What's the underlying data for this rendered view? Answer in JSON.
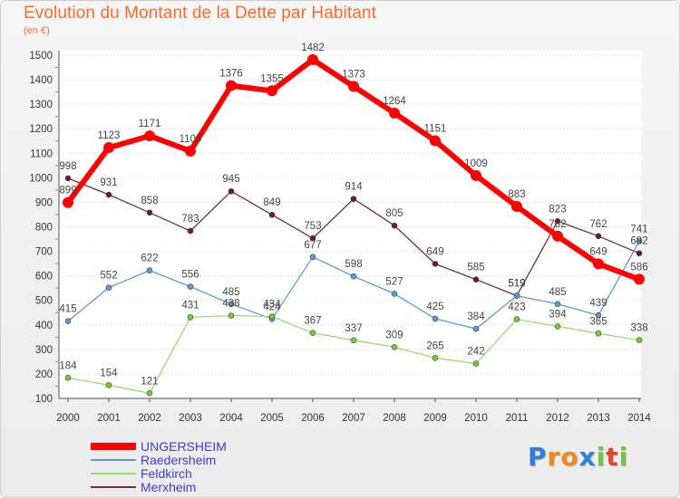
{
  "title": "Evolution du Montant de la Dette par Habitant",
  "subtitle": "(en €)",
  "logo": {
    "text": [
      "P",
      "r",
      "o",
      "x",
      "i",
      "t",
      "i"
    ],
    "colors": [
      "#2f7fd8",
      "#f08a1c",
      "#f08a1c",
      "#2f7fd8",
      "#7cc242",
      "#e8452c",
      "#7cc242"
    ]
  },
  "chart_data": {
    "type": "line",
    "title": "Evolution du Montant de la Dette par Habitant",
    "ylabel": "(en €)",
    "xlabel": "",
    "x": [
      "2000",
      "2001",
      "2002",
      "2003",
      "2004",
      "2005",
      "2006",
      "2007",
      "2008",
      "2009",
      "2010",
      "2011",
      "2012",
      "2013",
      "2014"
    ],
    "ylim": [
      100,
      1500
    ],
    "yticks": [
      100,
      200,
      300,
      400,
      500,
      600,
      700,
      800,
      900,
      1000,
      1100,
      1200,
      1300,
      1400,
      1500
    ],
    "grid": "horizontal-dotted",
    "legend_position": "bottom-left",
    "series": [
      {
        "name": "UNGERSHEIM",
        "color": "#ff0000",
        "values": [
          899,
          1123,
          1171,
          1109,
          1376,
          1355,
          1482,
          1373,
          1264,
          1151,
          1009,
          883,
          762,
          649,
          586
        ]
      },
      {
        "name": "Raedersheim",
        "color": "#5b9bd5",
        "values": [
          415,
          552,
          622,
          556,
          485,
          424,
          677,
          598,
          527,
          425,
          384,
          519,
          485,
          439,
          741
        ]
      },
      {
        "name": "Feldkirch",
        "color": "#99dd66",
        "values": [
          184,
          154,
          121,
          431,
          438,
          434,
          367,
          337,
          309,
          265,
          242,
          423,
          394,
          365,
          338
        ]
      },
      {
        "name": "Merxheim",
        "color": "#7b2e2e",
        "values": [
          998,
          931,
          858,
          783,
          945,
          849,
          753,
          914,
          805,
          649,
          585,
          519,
          823,
          762,
          692
        ]
      }
    ]
  }
}
